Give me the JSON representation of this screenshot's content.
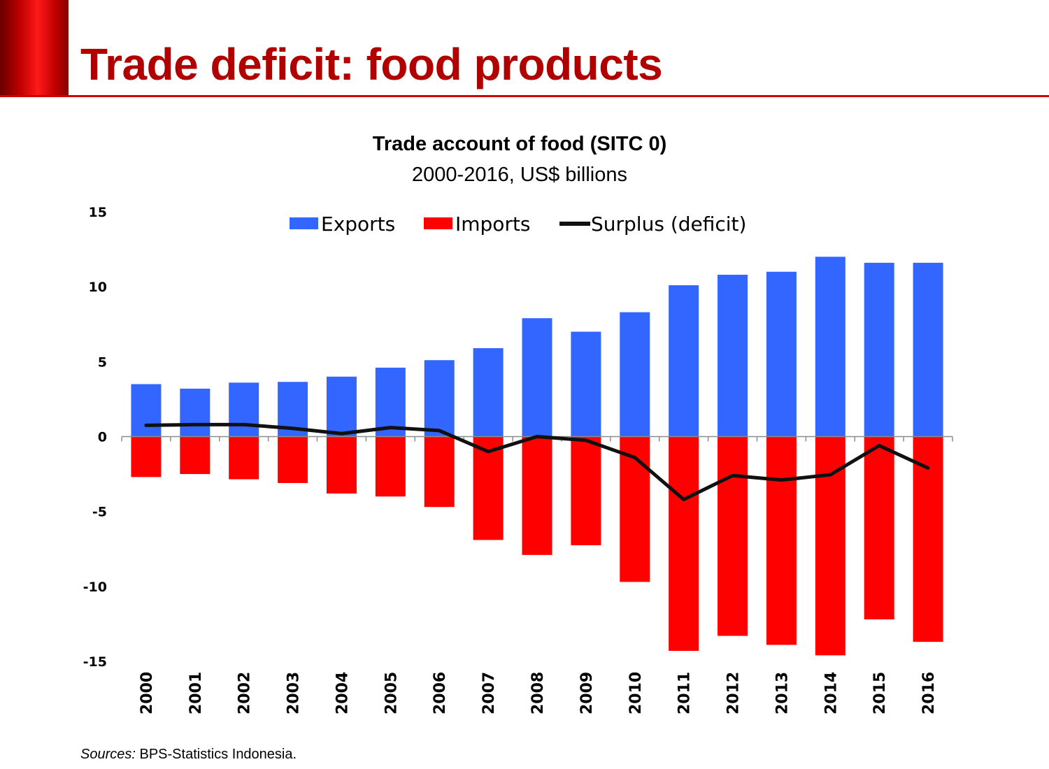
{
  "page": {
    "title": "Trade deficit: food products",
    "source_label": "Sources:",
    "source_text": "BPS-Statistics Indonesia."
  },
  "colors": {
    "accent": "#c00000",
    "exports": "#3366ff",
    "imports": "#ff0000",
    "surplus": "#111111"
  },
  "chart_data": {
    "type": "bar",
    "title": "Trade account of food (SITC 0)",
    "subtitle": "2000-2016, US$ billions",
    "xlabel": "",
    "ylabel": "",
    "ylim": [
      -15,
      15
    ],
    "yticks": [
      15,
      10,
      5,
      0,
      -5,
      -10,
      -15
    ],
    "grid": false,
    "legend_position": "top",
    "categories": [
      "2000",
      "2001",
      "2002",
      "2003",
      "2004",
      "2005",
      "2006",
      "2007",
      "2008",
      "2009",
      "2010",
      "2011",
      "2012",
      "2013",
      "2014",
      "2015",
      "2016"
    ],
    "series": [
      {
        "name": "Exports",
        "kind": "bar",
        "color": "#3366ff",
        "values": [
          3.5,
          3.2,
          3.6,
          3.65,
          4.0,
          4.6,
          5.1,
          5.9,
          7.9,
          7.0,
          8.3,
          10.1,
          10.8,
          11.0,
          12.0,
          11.6,
          11.6
        ]
      },
      {
        "name": "Imports",
        "kind": "bar",
        "color": "#ff0000",
        "values": [
          -2.7,
          -2.5,
          -2.85,
          -3.1,
          -3.8,
          -4.0,
          -4.7,
          -6.9,
          -7.9,
          -7.25,
          -9.7,
          -14.3,
          -13.3,
          -13.9,
          -14.6,
          -12.2,
          -13.7
        ]
      },
      {
        "name": "Surplus (deficit)",
        "kind": "line",
        "color": "#111111",
        "values": [
          0.75,
          0.8,
          0.8,
          0.55,
          0.2,
          0.6,
          0.4,
          -1.0,
          0.0,
          -0.25,
          -1.4,
          -4.2,
          -2.6,
          -2.9,
          -2.55,
          -0.6,
          -2.1
        ]
      }
    ]
  }
}
